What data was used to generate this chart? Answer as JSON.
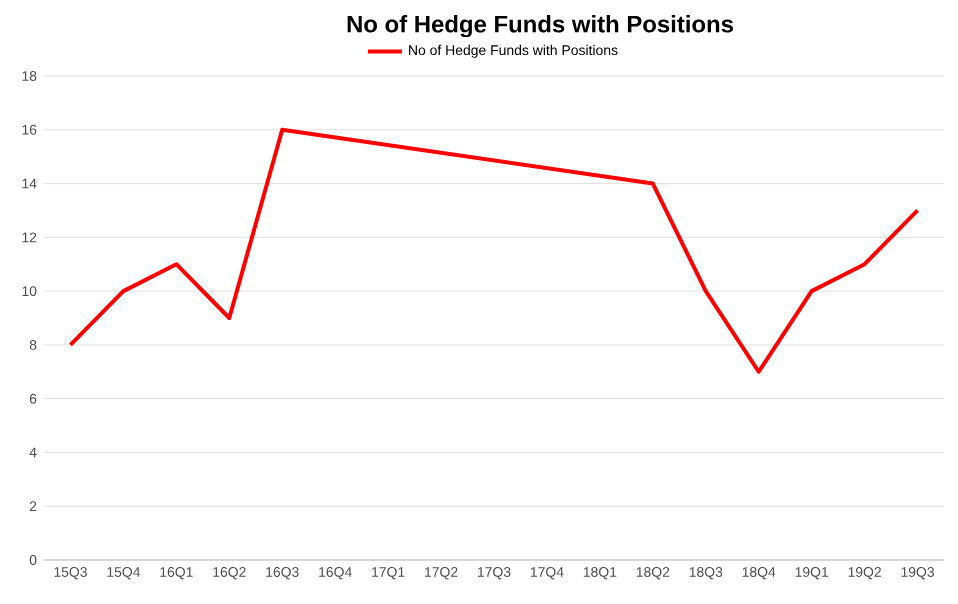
{
  "chart_data": {
    "type": "line",
    "title": "No of Hedge Funds with Positions",
    "categories": [
      "15Q3",
      "15Q4",
      "16Q1",
      "16Q2",
      "16Q3",
      "16Q4",
      "17Q1",
      "17Q2",
      "17Q3",
      "17Q4",
      "18Q1",
      "18Q2",
      "18Q3",
      "18Q4",
      "19Q1",
      "19Q2",
      "19Q3"
    ],
    "series": [
      {
        "name": "No of Hedge Funds with Positions",
        "color": "#ff0000",
        "values": [
          8,
          10,
          11,
          9,
          16,
          null,
          null,
          null,
          null,
          null,
          null,
          14,
          10,
          7,
          10,
          11,
          13
        ]
      }
    ],
    "ylim": [
      0,
      18
    ],
    "yticks": [
      0,
      2,
      4,
      6,
      8,
      10,
      12,
      14,
      16,
      18
    ],
    "grid": "y",
    "legend": "top",
    "marker": "none",
    "line_style": "solid"
  }
}
